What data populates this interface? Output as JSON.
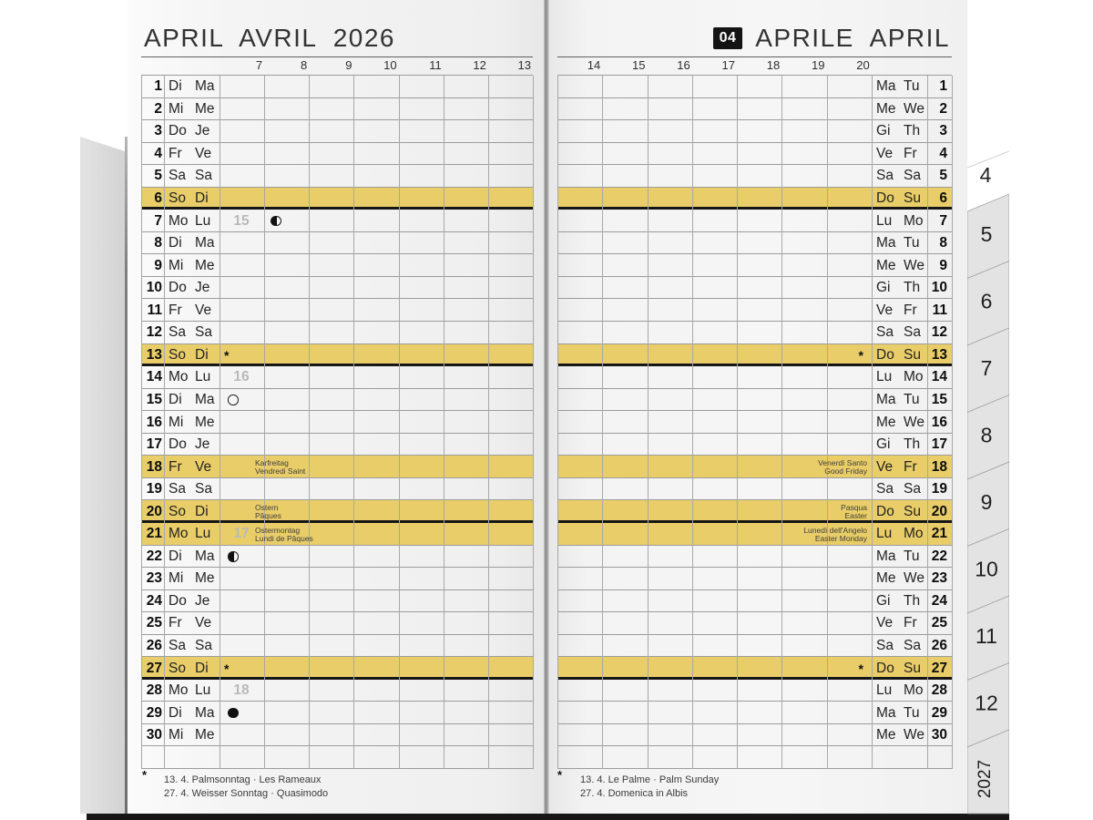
{
  "colors": {
    "highlight": "#e9cd68",
    "badge_bg": "#141414",
    "badge_text": "#ffffff",
    "page": "#f3f3f3",
    "grid_line": "#9c9c9c",
    "sunday_line": "#161616"
  },
  "star_marker": "*",
  "left_page": {
    "title": "APRIL AVRIL 2026",
    "hours": [
      "7",
      "8",
      "9",
      "10",
      "11",
      "12",
      "13"
    ],
    "footnote_marker": "*",
    "footnotes": [
      "13. 4.  Palmsonntag · Les Rameaux",
      "27. 4.  Weisser Sonntag · Quasimodo"
    ],
    "days": [
      {
        "n": "1",
        "a": "Di",
        "b": "Ma"
      },
      {
        "n": "2",
        "a": "Mi",
        "b": "Me"
      },
      {
        "n": "3",
        "a": "Do",
        "b": "Je"
      },
      {
        "n": "4",
        "a": "Fr",
        "b": "Ve"
      },
      {
        "n": "5",
        "a": "Sa",
        "b": "Sa"
      },
      {
        "n": "6",
        "a": "So",
        "b": "Di",
        "hl": true,
        "sun": true
      },
      {
        "n": "7",
        "a": "Mo",
        "b": "Lu",
        "wk": "15",
        "moon": "half"
      },
      {
        "n": "8",
        "a": "Di",
        "b": "Ma"
      },
      {
        "n": "9",
        "a": "Mi",
        "b": "Me"
      },
      {
        "n": "10",
        "a": "Do",
        "b": "Je"
      },
      {
        "n": "11",
        "a": "Fr",
        "b": "Ve"
      },
      {
        "n": "12",
        "a": "Sa",
        "b": "Sa"
      },
      {
        "n": "13",
        "a": "So",
        "b": "Di",
        "hl": true,
        "sun": true,
        "star": true
      },
      {
        "n": "14",
        "a": "Mo",
        "b": "Lu",
        "wk": "16"
      },
      {
        "n": "15",
        "a": "Di",
        "b": "Ma",
        "moon": "full"
      },
      {
        "n": "16",
        "a": "Mi",
        "b": "Me"
      },
      {
        "n": "17",
        "a": "Do",
        "b": "Je"
      },
      {
        "n": "18",
        "a": "Fr",
        "b": "Ve",
        "hl": true,
        "hol": [
          "Karfreitag",
          "Vendredi Saint"
        ]
      },
      {
        "n": "19",
        "a": "Sa",
        "b": "Sa"
      },
      {
        "n": "20",
        "a": "So",
        "b": "Di",
        "hl": true,
        "sun": true,
        "hol": [
          "Ostern",
          "Pâques"
        ]
      },
      {
        "n": "21",
        "a": "Mo",
        "b": "Lu",
        "hl": true,
        "wk": "17",
        "hol": [
          "Ostermontag",
          "Lundi de Pâques"
        ]
      },
      {
        "n": "22",
        "a": "Di",
        "b": "Ma",
        "moon": "half"
      },
      {
        "n": "23",
        "a": "Mi",
        "b": "Me"
      },
      {
        "n": "24",
        "a": "Do",
        "b": "Je"
      },
      {
        "n": "25",
        "a": "Fr",
        "b": "Ve"
      },
      {
        "n": "26",
        "a": "Sa",
        "b": "Sa"
      },
      {
        "n": "27",
        "a": "So",
        "b": "Di",
        "hl": true,
        "sun": true,
        "star": true
      },
      {
        "n": "28",
        "a": "Mo",
        "b": "Lu",
        "wk": "18"
      },
      {
        "n": "29",
        "a": "Di",
        "b": "Ma",
        "moon": "new"
      },
      {
        "n": "30",
        "a": "Mi",
        "b": "Me"
      }
    ]
  },
  "right_page": {
    "badge": "04",
    "title": "APRILE APRIL",
    "hours": [
      "14",
      "15",
      "16",
      "17",
      "18",
      "19",
      "20"
    ],
    "footnote_marker": "*",
    "footnotes": [
      "13. 4.  Le Palme · Palm Sunday",
      "27. 4.  Domenica in Albis"
    ],
    "days": [
      {
        "n": "1",
        "a": "Ma",
        "b": "Tu"
      },
      {
        "n": "2",
        "a": "Me",
        "b": "We"
      },
      {
        "n": "3",
        "a": "Gi",
        "b": "Th"
      },
      {
        "n": "4",
        "a": "Ve",
        "b": "Fr"
      },
      {
        "n": "5",
        "a": "Sa",
        "b": "Sa"
      },
      {
        "n": "6",
        "a": "Do",
        "b": "Su",
        "hl": true,
        "sun": true
      },
      {
        "n": "7",
        "a": "Lu",
        "b": "Mo"
      },
      {
        "n": "8",
        "a": "Ma",
        "b": "Tu"
      },
      {
        "n": "9",
        "a": "Me",
        "b": "We"
      },
      {
        "n": "10",
        "a": "Gi",
        "b": "Th"
      },
      {
        "n": "11",
        "a": "Ve",
        "b": "Fr"
      },
      {
        "n": "12",
        "a": "Sa",
        "b": "Sa"
      },
      {
        "n": "13",
        "a": "Do",
        "b": "Su",
        "hl": true,
        "sun": true,
        "star": true
      },
      {
        "n": "14",
        "a": "Lu",
        "b": "Mo"
      },
      {
        "n": "15",
        "a": "Ma",
        "b": "Tu"
      },
      {
        "n": "16",
        "a": "Me",
        "b": "We"
      },
      {
        "n": "17",
        "a": "Gi",
        "b": "Th"
      },
      {
        "n": "18",
        "a": "Ve",
        "b": "Fr",
        "hl": true,
        "hol": [
          "Venerdì Santo",
          "Good Friday"
        ]
      },
      {
        "n": "19",
        "a": "Sa",
        "b": "Sa"
      },
      {
        "n": "20",
        "a": "Do",
        "b": "Su",
        "hl": true,
        "sun": true,
        "hol": [
          "Pasqua",
          "Easter"
        ]
      },
      {
        "n": "21",
        "a": "Lu",
        "b": "Mo",
        "hl": true,
        "hol": [
          "Lunedì dell'Angelo",
          "Easter Monday"
        ]
      },
      {
        "n": "22",
        "a": "Ma",
        "b": "Tu"
      },
      {
        "n": "23",
        "a": "Me",
        "b": "We"
      },
      {
        "n": "24",
        "a": "Gi",
        "b": "Th"
      },
      {
        "n": "25",
        "a": "Ve",
        "b": "Fr"
      },
      {
        "n": "26",
        "a": "Sa",
        "b": "Sa"
      },
      {
        "n": "27",
        "a": "Do",
        "b": "Su",
        "hl": true,
        "sun": true,
        "star": true
      },
      {
        "n": "28",
        "a": "Lu",
        "b": "Mo"
      },
      {
        "n": "29",
        "a": "Ma",
        "b": "Tu"
      },
      {
        "n": "30",
        "a": "Me",
        "b": "We"
      }
    ]
  },
  "tabs": {
    "current": "4",
    "months": [
      "5",
      "6",
      "7",
      "8",
      "9",
      "10",
      "11",
      "12"
    ],
    "year": "2027"
  }
}
